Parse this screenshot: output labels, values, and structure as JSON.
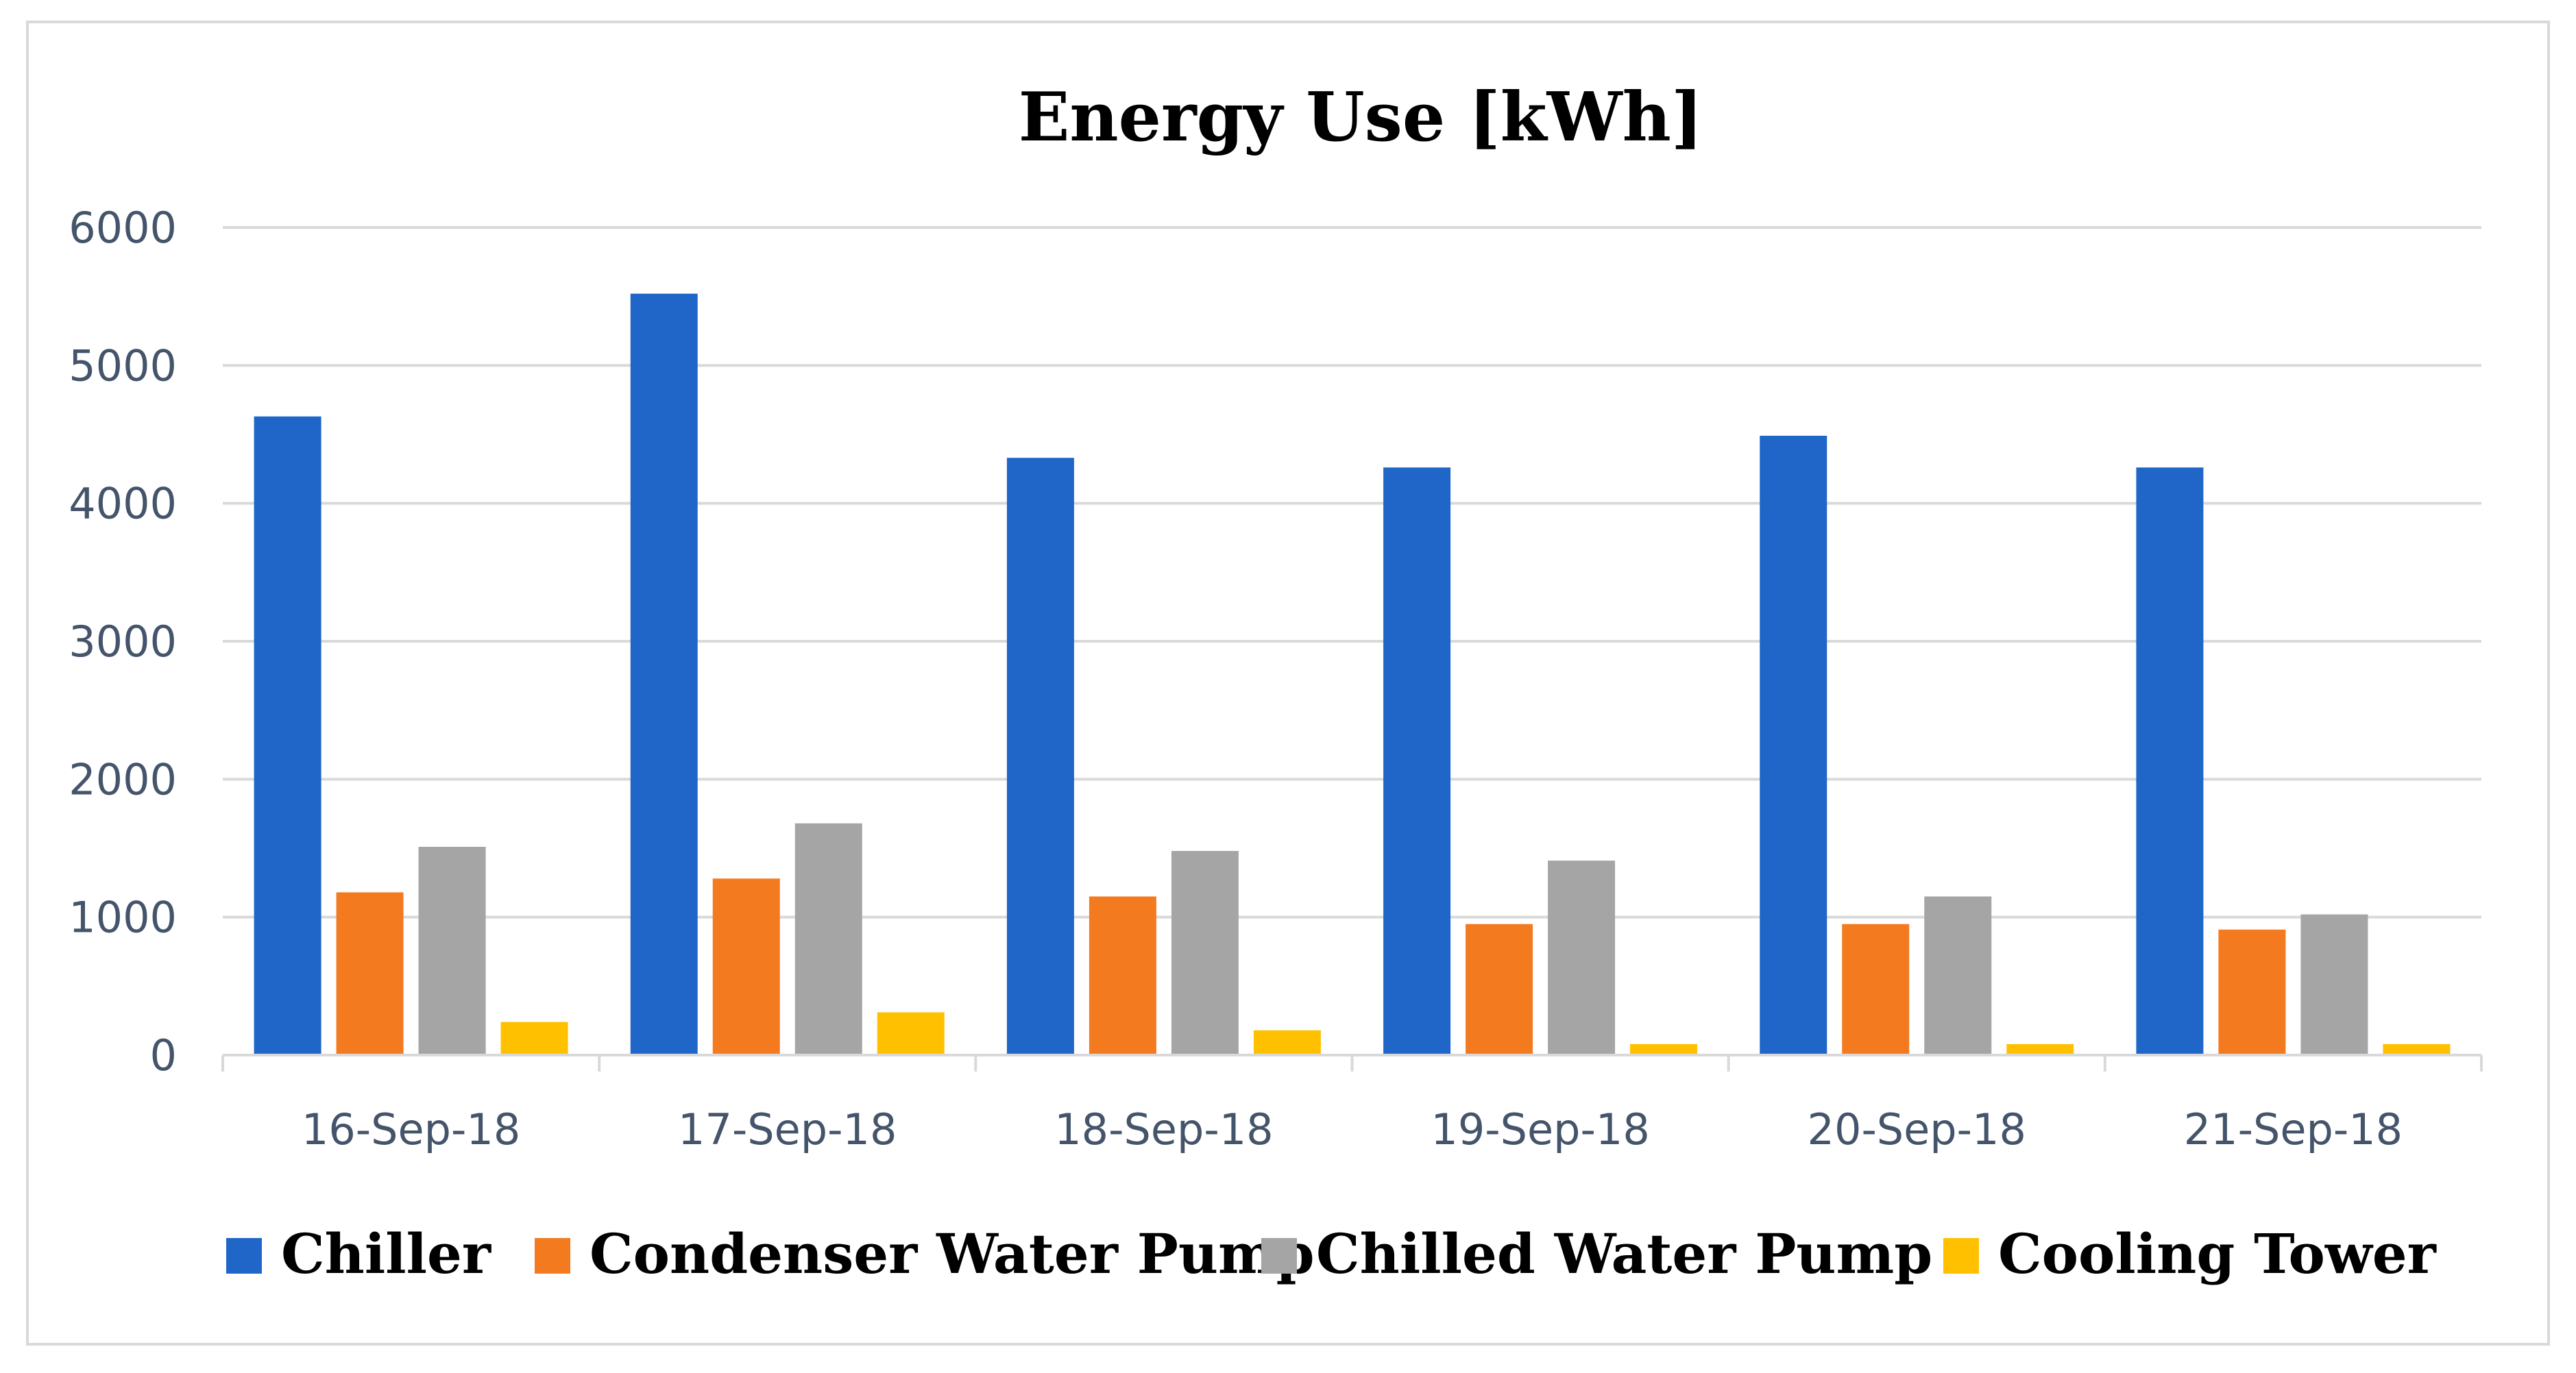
{
  "chart_data": {
    "type": "bar",
    "title": "Energy Use [kWh]",
    "xlabel": "",
    "ylabel": "",
    "ylim": [
      0,
      6000
    ],
    "yticks": [
      0,
      1000,
      2000,
      3000,
      4000,
      5000,
      6000
    ],
    "grid": true,
    "legend_position": "bottom",
    "categories": [
      "16-Sep-18",
      "17-Sep-18",
      "18-Sep-18",
      "19-Sep-18",
      "20-Sep-18",
      "21-Sep-18"
    ],
    "series": [
      {
        "name": "Chiller",
        "color": "#1F66C8",
        "values": [
          4630,
          5520,
          4330,
          4260,
          4490,
          4260
        ]
      },
      {
        "name": "Condenser Water Pump",
        "color": "#F47A20",
        "values": [
          1180,
          1280,
          1150,
          950,
          950,
          910
        ]
      },
      {
        "name": "Chilled Water Pump",
        "color": "#A5A5A5",
        "values": [
          1510,
          1680,
          1480,
          1410,
          1150,
          1020
        ]
      },
      {
        "name": "Cooling Tower",
        "color": "#FFC000",
        "values": [
          240,
          310,
          180,
          80,
          80,
          80
        ]
      }
    ]
  },
  "colors": {
    "grid": "#D9D9D9",
    "frame": "#D9D9D9",
    "tick_text": "#44546A"
  }
}
